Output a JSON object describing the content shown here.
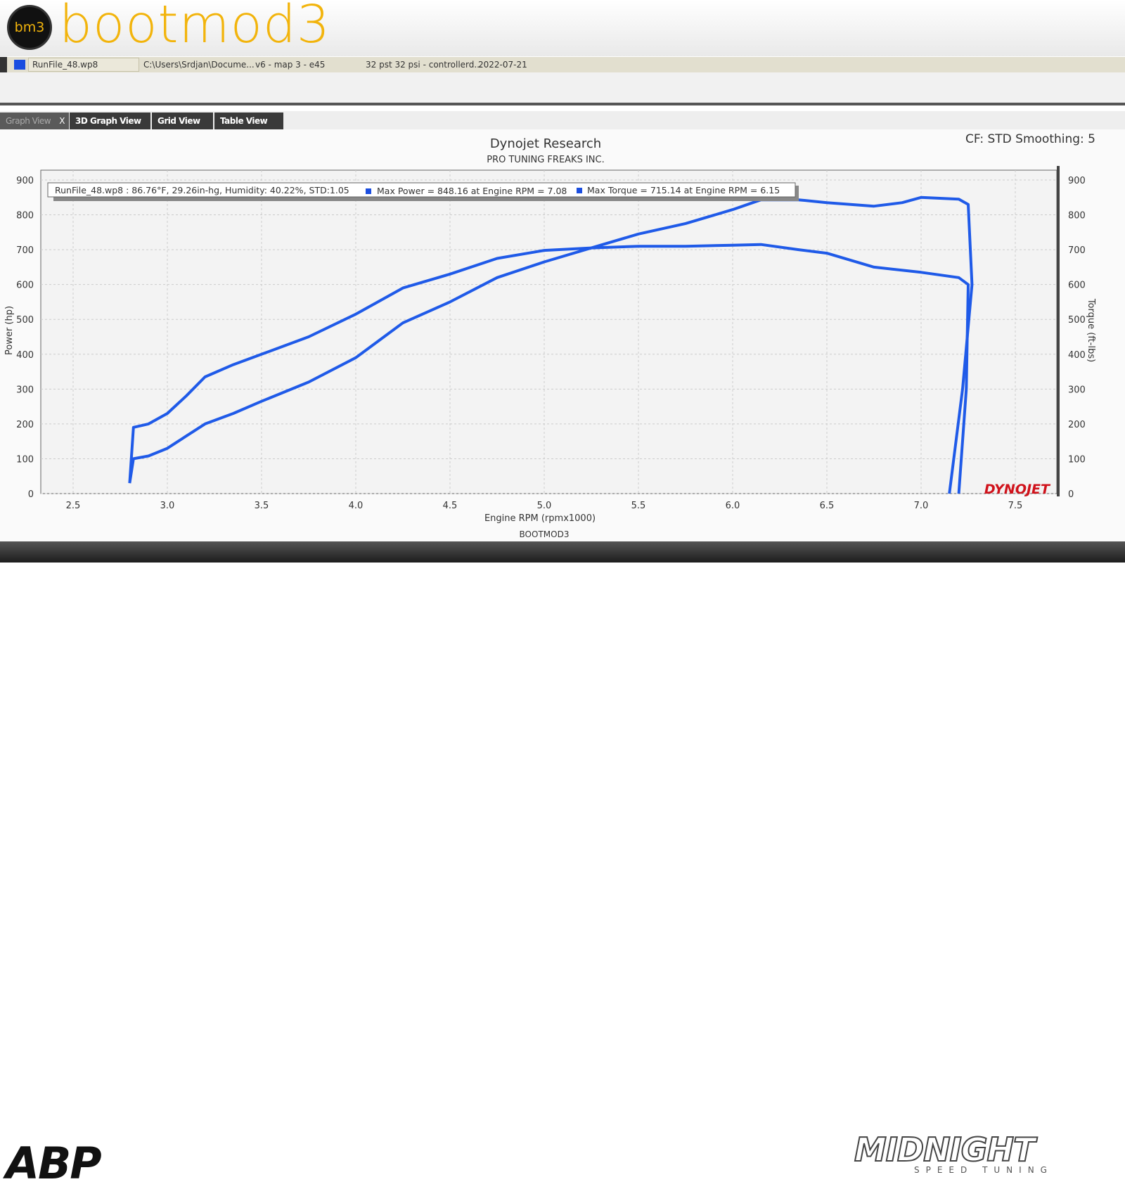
{
  "header": {
    "logo_text": "bm3",
    "brand": "bootmod3"
  },
  "filebar": {
    "file": "RunFile_48.wp8",
    "path": "C:\\Users\\Srdjan\\Docume...",
    "map": "v6 - map 3 - e45",
    "notes": "32 pst 32 psi - controllerd...",
    "date": "2022-07-21",
    "color": "#1b4ee0"
  },
  "tabs": [
    {
      "label": "Graph View",
      "active": true,
      "close": "X"
    },
    {
      "label": "3D Graph View"
    },
    {
      "label": "Grid View"
    },
    {
      "label": "Table View"
    }
  ],
  "chart_data": {
    "type": "line",
    "title": "Dynojet Research",
    "subtitle": "PRO TUNING FREAKS INC.",
    "corner_text": "CF: STD Smoothing: 5",
    "footer_text": "BOOTMOD3",
    "watermark": "DYNOJET",
    "legend": "RunFile_48.wp8  : 86.76°F, 29.26in-hg, Humidity: 40.22%, STD:1.05",
    "legend_power": "Max Power = 848.16 at Engine RPM = 7.08",
    "legend_torque": "Max Torque = 715.14 at Engine RPM = 6.15",
    "xlabel": "Engine RPM (rpmx1000)",
    "ylabel": "Power (hp)",
    "y2label": "Torque (ft-lbs)",
    "xlim": [
      2.35,
      7.6
    ],
    "ylim": [
      0,
      900
    ],
    "y2lim": [
      0,
      900
    ],
    "xticks": [
      "2.5",
      "3.0",
      "3.5",
      "4.0",
      "4.5",
      "5.0",
      "5.5",
      "6.0",
      "6.5",
      "7.0",
      "7.5"
    ],
    "yticks": [
      "0",
      "100",
      "200",
      "300",
      "400",
      "500",
      "600",
      "700",
      "800",
      "900"
    ],
    "grid": true,
    "line_color": "#1f5ae8",
    "series": [
      {
        "name": "Power",
        "x": [
          2.8,
          2.82,
          2.9,
          3.0,
          3.1,
          3.2,
          3.35,
          3.5,
          3.75,
          4.0,
          4.15,
          4.25,
          4.5,
          4.75,
          5.0,
          5.25,
          5.5,
          5.75,
          6.0,
          6.15,
          6.35,
          6.5,
          6.75,
          6.9,
          7.0,
          7.08,
          7.2,
          7.25,
          7.27,
          7.22,
          7.15
        ],
        "y": [
          30,
          100,
          108,
          130,
          165,
          200,
          230,
          265,
          320,
          390,
          450,
          490,
          550,
          620,
          665,
          705,
          745,
          775,
          815,
          843,
          843,
          835,
          825,
          835,
          850,
          848,
          845,
          830,
          600,
          300,
          0
        ]
      },
      {
        "name": "Torque",
        "x": [
          2.8,
          2.82,
          2.9,
          3.0,
          3.1,
          3.2,
          3.35,
          3.5,
          3.75,
          4.0,
          4.15,
          4.25,
          4.5,
          4.75,
          5.0,
          5.25,
          5.5,
          5.75,
          6.0,
          6.15,
          6.35,
          6.5,
          6.75,
          7.0,
          7.2,
          7.25,
          7.24,
          7.2
        ],
        "y": [
          30,
          190,
          200,
          230,
          280,
          335,
          370,
          400,
          450,
          515,
          560,
          590,
          630,
          675,
          698,
          705,
          710,
          710,
          713,
          715,
          700,
          690,
          650,
          635,
          620,
          600,
          300,
          0
        ]
      }
    ]
  },
  "footer": {
    "left_logo": "ABP",
    "right_logo": "MIDNIGHT",
    "right_sub": "SPEED TUNING"
  }
}
